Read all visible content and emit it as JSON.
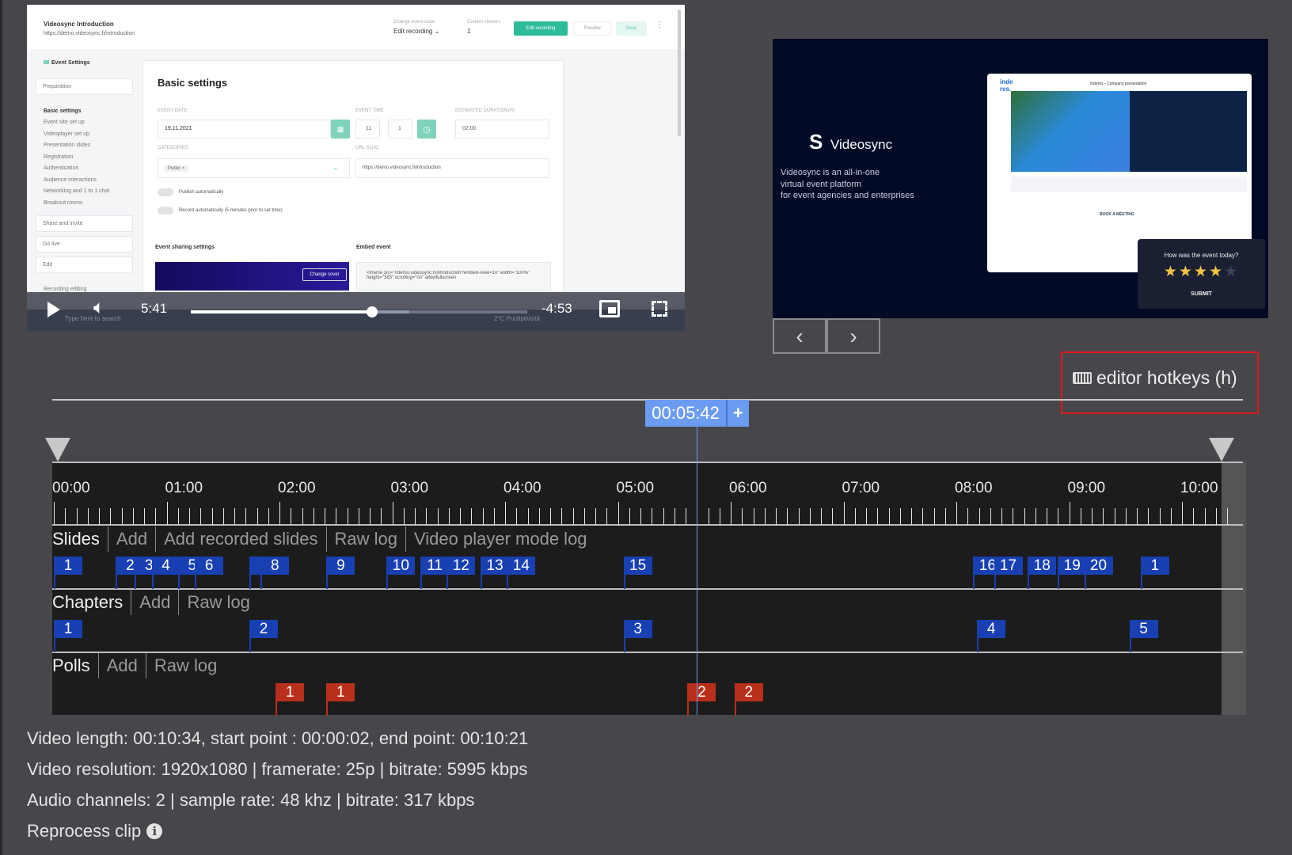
{
  "video": {
    "app_title": "Videosync Introduction",
    "app_url": "https://demo.videosync.fi/introduction",
    "state_label": "Change event state",
    "state_value": "Edit recording",
    "viewers_label": "Current viewers",
    "viewers_value": "1",
    "edit_recording_btn": "Edit recording",
    "preview_btn": "Preview",
    "save_btn": "Save",
    "sidebar_title": "Event Settings",
    "sidebar_sections": [
      "Preparation",
      "Share and invite",
      "Go live",
      "Edit"
    ],
    "sidebar_items": [
      "Basic settings",
      "Event site set up",
      "Videoplayer set up",
      "Presentation slides",
      "Registration",
      "Authentication",
      "Audience interactions",
      "Networking and 1 to 1 chat",
      "Breakout rooms"
    ],
    "sidebar_cut": "Recording editing",
    "main_title": "Basic settings",
    "event_date_label": "EVENT DATE",
    "event_date": "19.11.2021",
    "event_time_label": "EVENT TIME",
    "event_hour": "11",
    "event_minute": "1",
    "duration_label": "ESTIMATED DURATION(H)",
    "duration": "02:00",
    "categories_label": "CATEGORIES",
    "category_tag": "Public",
    "url_slug_label": "URL SLUG",
    "url_slug": "https://demo.videosync.fi/introduction",
    "publish_auto": "Publish automatically",
    "record_auto": "Record automatically (5 minutes prior to set time)",
    "sharing_title": "Event sharing settings",
    "change_cover": "Change cover",
    "embed_title": "Embed event",
    "embed_code": "<iframe src=\"//demo.videosync.fi/introduction?embed-view=10\" width=\"100%\" height=\"383\" scrolling=\"no\" allowfullscreen",
    "taskbar_search": "Type here to search",
    "taskbar_weather": "2°C Puolipilvistä"
  },
  "player": {
    "current_time": "5:41",
    "remaining_time": "-4:53",
    "progress_percent": 53.8,
    "buffered_percent": 65
  },
  "slide": {
    "brand": "Videosync",
    "tagline": [
      "Videosync is an all-in-one",
      "virtual event platform",
      "for event agencies and enterprises"
    ],
    "inner_title": "Inderes - Company presentation",
    "inner_book": "BOOK A MEETING",
    "poll_question": "How was the event today?",
    "poll_rating": 4,
    "poll_max": 5,
    "poll_submit": "SUBMIT",
    "prev_icon": "chevron-left",
    "next_icon": "chevron-right"
  },
  "hotkeys": {
    "label": "editor hotkeys (h)",
    "icon": "keyboard-icon"
  },
  "timeline": {
    "playhead": "00:05:42",
    "add_label": "+",
    "tick_labels": [
      "00:00",
      "01:00",
      "02:00",
      "03:00",
      "04:00",
      "05:00",
      "06:00",
      "07:00",
      "08:00",
      "09:00",
      "10:00"
    ],
    "start_point_seconds": 2,
    "end_point_seconds": 621,
    "length_seconds": 634,
    "rows": {
      "slides": {
        "title": "Slides",
        "actions": [
          "Add",
          "Add recorded slides",
          "Raw log",
          "Video player mode log"
        ],
        "markers": [
          {
            "label": "1",
            "t": 0
          },
          {
            "label": "2",
            "t": 33
          },
          {
            "label": "3",
            "t": 43
          },
          {
            "label": "4",
            "t": 52
          },
          {
            "label": "5",
            "t": 66
          },
          {
            "label": "6",
            "t": 75
          },
          {
            "label": "7",
            "t": 104
          },
          {
            "label": "8",
            "t": 110
          },
          {
            "label": "9",
            "t": 145
          },
          {
            "label": "10",
            "t": 177
          },
          {
            "label": "11",
            "t": 195
          },
          {
            "label": "12",
            "t": 209
          },
          {
            "label": "13",
            "t": 227
          },
          {
            "label": "14",
            "t": 241
          },
          {
            "label": "15",
            "t": 303
          },
          {
            "label": "16",
            "t": 489
          },
          {
            "label": "17",
            "t": 500
          },
          {
            "label": "18",
            "t": 518
          },
          {
            "label": "19",
            "t": 534
          },
          {
            "label": "20",
            "t": 548
          },
          {
            "label": "1",
            "t": 578
          }
        ]
      },
      "chapters": {
        "title": "Chapters",
        "actions": [
          "Add",
          "Raw log"
        ],
        "markers": [
          {
            "label": "1",
            "t": 0
          },
          {
            "label": "2",
            "t": 104
          },
          {
            "label": "3",
            "t": 303
          },
          {
            "label": "4",
            "t": 491
          },
          {
            "label": "5",
            "t": 572
          }
        ]
      },
      "polls": {
        "title": "Polls",
        "actions": [
          "Add",
          "Raw log"
        ],
        "markers": [
          {
            "label": "1",
            "t": 118
          },
          {
            "label": "1",
            "t": 145
          },
          {
            "label": "2",
            "t": 337
          },
          {
            "label": "2",
            "t": 362
          }
        ]
      }
    },
    "colors": {
      "slide_marker": "#1840b2",
      "poll_marker": "#b8301b",
      "playhead": "#6c9bf2"
    }
  },
  "info": {
    "line1": "Video length: 00:10:34, start point : 00:00:02, end point: 00:10:21",
    "line2": "Video resolution: 1920x1080 | framerate: 25p | bitrate: 5995 kbps",
    "line3": "Audio channels: 2 | sample rate: 48 khz | bitrate: 317 kbps",
    "reprocess": "Reprocess clip",
    "reprocess_icon": "info-icon"
  }
}
